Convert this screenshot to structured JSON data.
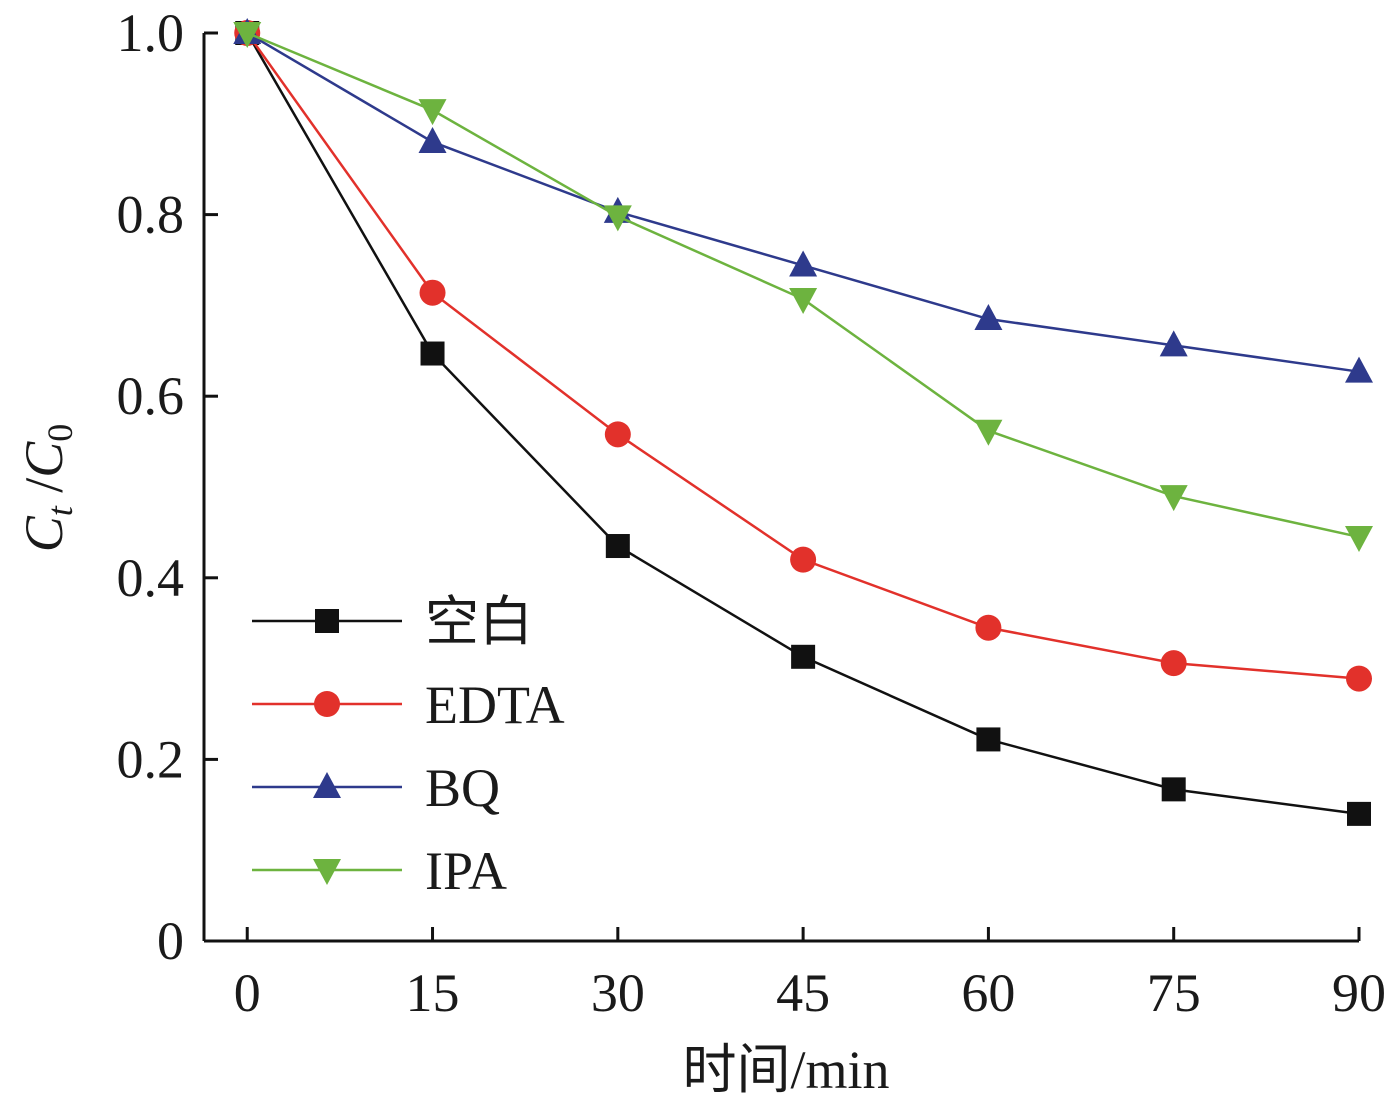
{
  "chart_data": {
    "type": "line",
    "title": "",
    "xlabel": "时间/min",
    "ylabel": {
      "main_a": "C",
      "sub_a": "t",
      "sep": " /",
      "main_b": "C",
      "sub_b": "0"
    },
    "x": [
      0,
      15,
      30,
      45,
      60,
      75,
      90
    ],
    "x_tick_labels": [
      "0",
      "15",
      "30",
      "45",
      "60",
      "75",
      "90"
    ],
    "y_ticks": [
      0,
      0.2,
      0.4,
      0.6,
      0.8,
      1.0
    ],
    "y_tick_labels": [
      "0",
      "0.2",
      "0.4",
      "0.6",
      "0.8",
      "1.0"
    ],
    "xlim": [
      -3.5,
      90
    ],
    "ylim": [
      0,
      1.0
    ],
    "grid": false,
    "legend_position": "bottom-left",
    "series": [
      {
        "name": "空白",
        "marker": "square",
        "color": "#111111",
        "values": [
          1.0,
          0.647,
          0.435,
          0.313,
          0.222,
          0.167,
          0.14
        ]
      },
      {
        "name": "EDTA",
        "marker": "circle",
        "color": "#e2312b",
        "values": [
          1.0,
          0.714,
          0.558,
          0.42,
          0.345,
          0.306,
          0.289
        ]
      },
      {
        "name": "BQ",
        "marker": "triangle-up",
        "color": "#2e3a8c",
        "values": [
          1.0,
          0.88,
          0.803,
          0.744,
          0.685,
          0.656,
          0.627
        ]
      },
      {
        "name": "IPA",
        "marker": "triangle-down",
        "color": "#6db33f",
        "values": [
          1.0,
          0.915,
          0.798,
          0.707,
          0.562,
          0.49,
          0.445
        ]
      }
    ]
  }
}
